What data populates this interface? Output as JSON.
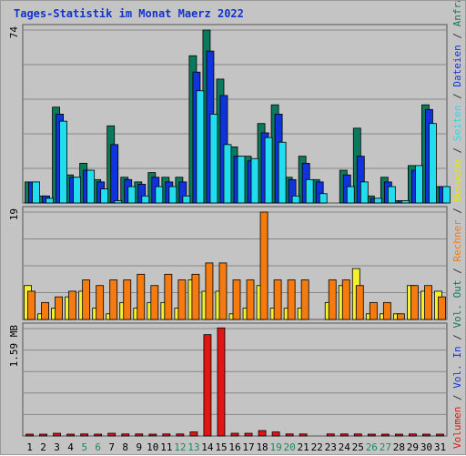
{
  "chart_data": {
    "type": "bar",
    "title": "Tages-Statistik im Monat Maerz 2022",
    "x": [
      "1",
      "2",
      "3",
      "4",
      "5",
      "6",
      "7",
      "8",
      "9",
      "10",
      "11",
      "12",
      "13",
      "14",
      "15",
      "16",
      "17",
      "18",
      "19",
      "20",
      "21",
      "22",
      "23",
      "24",
      "25",
      "26",
      "27",
      "28",
      "29",
      "30",
      "31"
    ],
    "weekend_days": [
      "5",
      "6",
      "12",
      "13",
      "19",
      "20",
      "26",
      "27"
    ],
    "panels": [
      {
        "id": "requests",
        "ymax_label": "74",
        "ylim": [
          0,
          74
        ],
        "series": [
          {
            "name": "Anfragen",
            "color": "#0b7a5c",
            "values": [
              9,
              3,
              41,
              12,
              17,
              10,
              33,
              11,
              9,
              13,
              11,
              11,
              63,
              74,
              53,
              24,
              20,
              34,
              42,
              11,
              20,
              10,
              0,
              14,
              32,
              3,
              11,
              1,
              16,
              42,
              7
            ]
          },
          {
            "name": "Dateien",
            "color": "#1133dd",
            "values": [
              9,
              3,
              38,
              11,
              14,
              9,
              25,
              10,
              8,
              11,
              9,
              9,
              56,
              65,
              46,
              20,
              18,
              30,
              38,
              10,
              17,
              9,
              0,
              12,
              20,
              2,
              9,
              1,
              14,
              40,
              7
            ]
          },
          {
            "name": "Seiten",
            "color": "#22ddee",
            "values": [
              9,
              2,
              35,
              11,
              14,
              6,
              1,
              7,
              3,
              7,
              7,
              3,
              48,
              38,
              25,
              20,
              19,
              28,
              26,
              3,
              10,
              4,
              0,
              7,
              9,
              2,
              7,
              1,
              16,
              34,
              7
            ]
          }
        ]
      },
      {
        "id": "visits",
        "ymax_label": "19",
        "ylim": [
          0,
          19
        ],
        "series": [
          {
            "name": "Besuche",
            "color": "#f2f230",
            "values": [
              6,
              1,
              2,
              4,
              5,
              2,
              1,
              3,
              2,
              3,
              3,
              2,
              7,
              5,
              5,
              1,
              2,
              6,
              2,
              2,
              2,
              0,
              3,
              6,
              9,
              1,
              1,
              1,
              6,
              5,
              5
            ]
          },
          {
            "name": "Rechner",
            "color": "#f57a10",
            "values": [
              5,
              3,
              4,
              5,
              7,
              6,
              7,
              7,
              8,
              6,
              8,
              7,
              8,
              10,
              10,
              7,
              7,
              19,
              7,
              7,
              7,
              0,
              7,
              7,
              6,
              3,
              3,
              1,
              6,
              6,
              4
            ]
          }
        ]
      },
      {
        "id": "volume",
        "ymax_label": "1.59 MB",
        "ylim": [
          0,
          1.59
        ],
        "series": [
          {
            "name": "Volumen",
            "color": "#e21515",
            "values": [
              0.02,
              0.02,
              0.04,
              0.02,
              0.03,
              0.02,
              0.04,
              0.03,
              0.03,
              0.02,
              0.03,
              0.03,
              0.06,
              1.5,
              1.6,
              0.04,
              0.04,
              0.08,
              0.06,
              0.03,
              0.03,
              0,
              0.03,
              0.03,
              0.03,
              0.02,
              0.02,
              0.02,
              0.03,
              0.02,
              0.02
            ]
          }
        ]
      }
    ],
    "right_legend": [
      {
        "text": "Volumen",
        "color": "#e21515"
      },
      {
        "text": " / ",
        "color": "#333333"
      },
      {
        "text": "Vol. In",
        "color": "#1133dd"
      },
      {
        "text": " / ",
        "color": "#333333"
      },
      {
        "text": "Vol. Out",
        "color": "#0b7a5c"
      },
      {
        "text": " / ",
        "color": "#333333"
      },
      {
        "text": "Rechner",
        "color": "#f57a10"
      },
      {
        "text": " / ",
        "color": "#333333"
      },
      {
        "text": "Besuche",
        "color": "#e6e600"
      },
      {
        "text": " / ",
        "color": "#333333"
      },
      {
        "text": "Seiten",
        "color": "#22ddee"
      },
      {
        "text": " / ",
        "color": "#333333"
      },
      {
        "text": "Dateien",
        "color": "#1133dd"
      },
      {
        "text": " / ",
        "color": "#333333"
      },
      {
        "text": "Anfragen",
        "color": "#0b7a5c"
      }
    ],
    "colors": {
      "title": "#1133cc",
      "background": "#c4c4c4",
      "grid": "#888888",
      "weekday_label": "#000000",
      "weekend_label": "#1a8a5a"
    }
  }
}
